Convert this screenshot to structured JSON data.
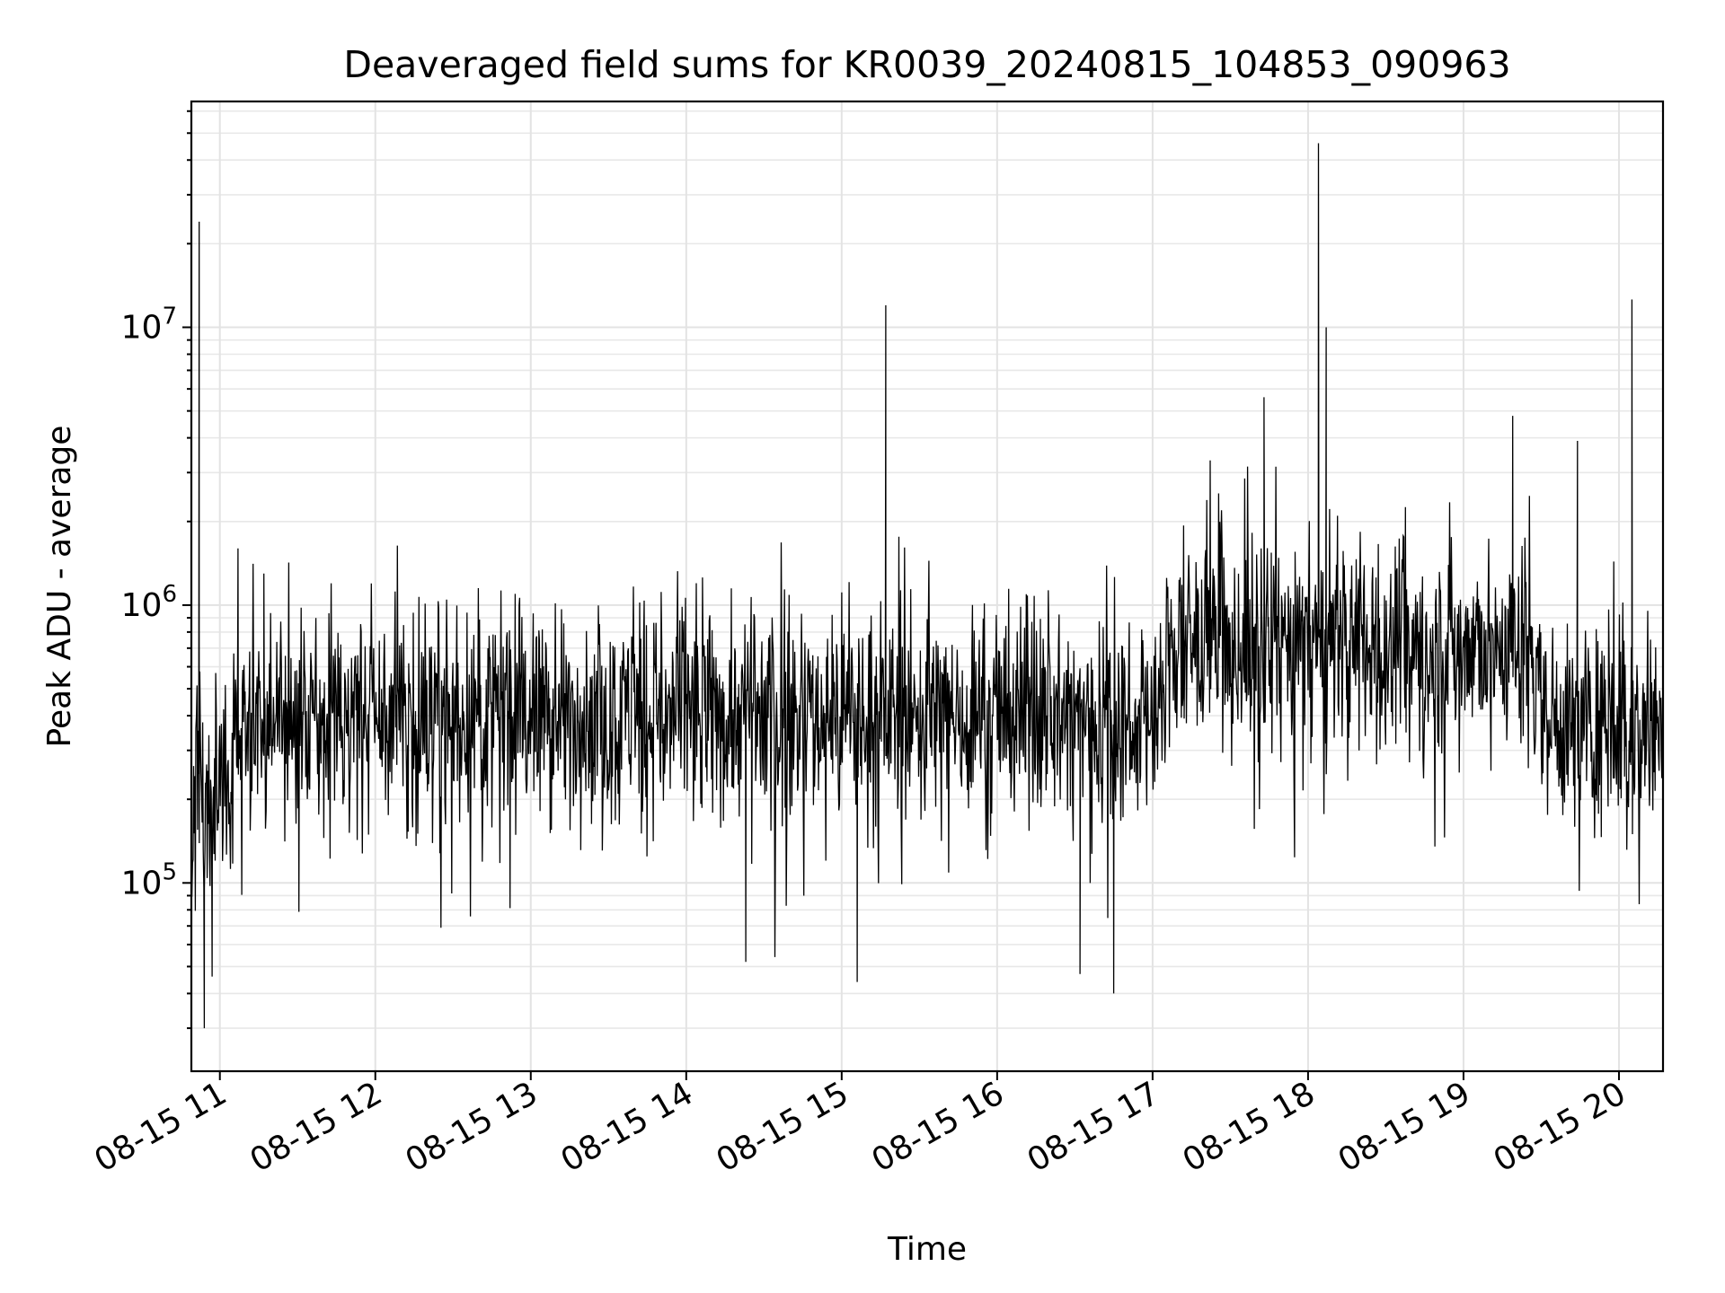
{
  "chart_data": {
    "type": "line",
    "title": "Deaveraged field sums for KR0039_20240815_104853_090963",
    "xlabel": "Time",
    "ylabel": "Peak ADU - average",
    "yscale": "log",
    "ylim": [
      21000,
      65000000
    ],
    "xlim": [
      "2024-08-15 10:49",
      "2024-08-15 20:17"
    ],
    "grid": true,
    "x_ticks": [
      {
        "value": "2024-08-15 11:00",
        "label": "08-15 11"
      },
      {
        "value": "2024-08-15 12:00",
        "label": "08-15 12"
      },
      {
        "value": "2024-08-15 13:00",
        "label": "08-15 13"
      },
      {
        "value": "2024-08-15 14:00",
        "label": "08-15 14"
      },
      {
        "value": "2024-08-15 15:00",
        "label": "08-15 15"
      },
      {
        "value": "2024-08-15 16:00",
        "label": "08-15 16"
      },
      {
        "value": "2024-08-15 17:00",
        "label": "08-15 17"
      },
      {
        "value": "2024-08-15 18:00",
        "label": "08-15 18"
      },
      {
        "value": "2024-08-15 19:00",
        "label": "08-15 19"
      },
      {
        "value": "2024-08-15 20:00",
        "label": "08-15 20"
      }
    ],
    "y_ticks": [
      {
        "value": 100000,
        "base": "10",
        "exponent": "5"
      },
      {
        "value": 1000000,
        "base": "10",
        "exponent": "6"
      },
      {
        "value": 10000000,
        "base": "10",
        "exponent": "7"
      }
    ],
    "color": "#000000",
    "baseline_levels": [
      {
        "from": "2024-08-15 10:49",
        "to": "2024-08-15 11:05",
        "value": 220000
      },
      {
        "from": "2024-08-15 11:05",
        "to": "2024-08-15 17:05",
        "value": 400000
      },
      {
        "from": "2024-08-15 17:05",
        "to": "2024-08-15 19:30",
        "value": 700000
      },
      {
        "from": "2024-08-15 19:30",
        "to": "2024-08-15 20:17",
        "value": 380000
      }
    ],
    "peaks": [
      {
        "x": "2024-08-15 10:52",
        "y": 24000000
      },
      {
        "x": "2024-08-15 10:52",
        "y": 1000000
      },
      {
        "x": "2024-08-15 11:07",
        "y": 1600000
      },
      {
        "x": "2024-08-15 11:17",
        "y": 1300000
      },
      {
        "x": "2024-08-15 15:17",
        "y": 12000000
      },
      {
        "x": "2024-08-15 17:43",
        "y": 5600000
      },
      {
        "x": "2024-08-15 18:04",
        "y": 46000000
      },
      {
        "x": "2024-08-15 18:07",
        "y": 10000000
      },
      {
        "x": "2024-08-15 19:19",
        "y": 4800000
      },
      {
        "x": "2024-08-15 19:44",
        "y": 3900000
      },
      {
        "x": "2024-08-15 20:05",
        "y": 12600000
      }
    ],
    "dips": [
      {
        "x": "2024-08-15 10:54",
        "y": 30000
      },
      {
        "x": "2024-08-15 10:57",
        "y": 46000
      },
      {
        "x": "2024-08-15 14:23",
        "y": 52000
      },
      {
        "x": "2024-08-15 15:06",
        "y": 44000
      },
      {
        "x": "2024-08-15 16:32",
        "y": 47000
      },
      {
        "x": "2024-08-15 16:45",
        "y": 40000
      }
    ]
  }
}
